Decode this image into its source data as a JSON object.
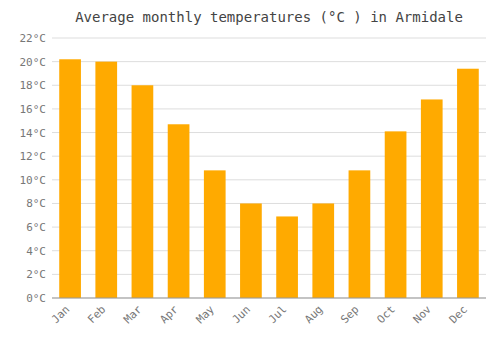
{
  "chart_data": {
    "type": "bar",
    "title": "Average monthly temperatures (°C ) in Armidale",
    "categories": [
      "Jan",
      "Feb",
      "Mar",
      "Apr",
      "May",
      "Jun",
      "Jul",
      "Aug",
      "Sep",
      "Oct",
      "Nov",
      "Dec"
    ],
    "values": [
      20.2,
      20.0,
      18.0,
      14.7,
      10.8,
      8.0,
      6.9,
      8.0,
      10.8,
      14.1,
      16.8,
      19.4
    ],
    "color": "#FFAA00",
    "ylim": [
      0,
      22
    ],
    "yticks": [
      {
        "value": 0,
        "label": "0°C"
      },
      {
        "value": 2,
        "label": "2°C"
      },
      {
        "value": 4,
        "label": "4°C"
      },
      {
        "value": 6,
        "label": "6°C"
      },
      {
        "value": 8,
        "label": "8°C"
      },
      {
        "value": 10,
        "label": "10°C"
      },
      {
        "value": 12,
        "label": "12°C"
      },
      {
        "value": 14,
        "label": "14°C"
      },
      {
        "value": 16,
        "label": "16°C"
      },
      {
        "value": 18,
        "label": "18°C"
      },
      {
        "value": 20,
        "label": "20°C"
      },
      {
        "value": 22,
        "label": "22°C"
      }
    ],
    "grid": true
  }
}
